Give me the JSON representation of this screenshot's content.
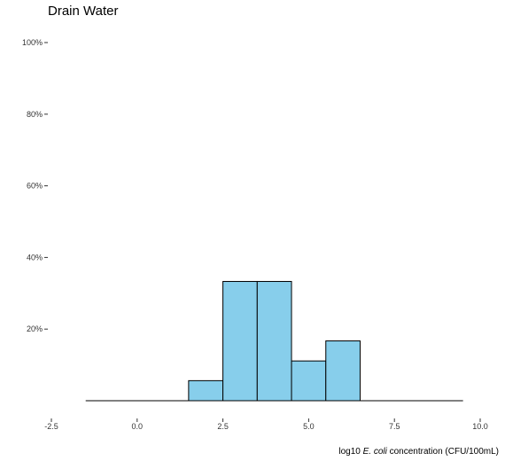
{
  "chart_data": {
    "type": "bar",
    "title": "Drain Water",
    "xlabel": {
      "prefix": "log10 ",
      "italic": "E. coli",
      "suffix": " concentration (CFU/100mL)"
    },
    "ylabel": "",
    "x_ticks": [
      -2.5,
      0.0,
      2.5,
      5.0,
      7.5,
      10.0
    ],
    "x_tick_labels": [
      "-2.5",
      "0.0",
      "2.5",
      "5.0",
      "7.5",
      "10.0"
    ],
    "y_ticks": [
      20,
      40,
      60,
      80,
      100
    ],
    "y_tick_labels": [
      "20%",
      "40%",
      "60%",
      "80%",
      "100%"
    ],
    "xlim": [
      -2.5,
      10.0
    ],
    "ylim": [
      0,
      100
    ],
    "baseline_range": [
      -1.5,
      9.5
    ],
    "bins": [
      {
        "x0": 1.5,
        "x1": 2.5,
        "value": 5.6
      },
      {
        "x0": 2.5,
        "x1": 3.5,
        "value": 33.3
      },
      {
        "x0": 3.5,
        "x1": 4.5,
        "value": 33.3
      },
      {
        "x0": 4.5,
        "x1": 5.5,
        "value": 11.1
      },
      {
        "x0": 5.5,
        "x1": 6.5,
        "value": 16.7
      }
    ],
    "bar_color": "#87CEEB",
    "grid": false
  }
}
